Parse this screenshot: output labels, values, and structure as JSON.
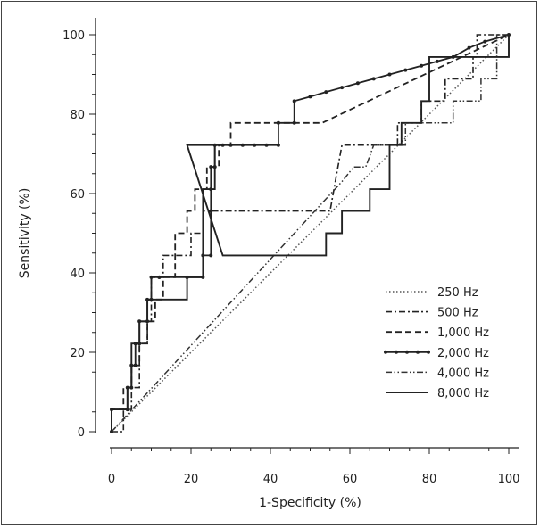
{
  "chart_data": {
    "type": "line",
    "title": "",
    "xlabel": "1-Specificity (%)",
    "ylabel": "Sensitivity (%)",
    "xlim": [
      0,
      100
    ],
    "ylim": [
      0,
      100
    ],
    "xticks": [
      0,
      20,
      40,
      60,
      80,
      100
    ],
    "yticks": [
      0,
      20,
      40,
      60,
      80,
      100
    ],
    "legend_position": "bottom-right",
    "series": [
      {
        "name": "250 Hz",
        "style": "dotted",
        "markers": false,
        "points": [
          [
            0,
            0
          ],
          [
            100,
            100
          ]
        ]
      },
      {
        "name": "500 Hz",
        "style": "dashdot",
        "markers": false,
        "points": [
          [
            0,
            0
          ],
          [
            3,
            0
          ],
          [
            3,
            5.6
          ],
          [
            5,
            5.6
          ],
          [
            5,
            11.1
          ],
          [
            7,
            11.1
          ],
          [
            7,
            22.2
          ],
          [
            9,
            22.2
          ],
          [
            9,
            27.8
          ],
          [
            10,
            27.8
          ],
          [
            10,
            38.9
          ],
          [
            12,
            38.9
          ],
          [
            13,
            38.9
          ],
          [
            13,
            44.4
          ],
          [
            20,
            44.4
          ],
          [
            20,
            50
          ],
          [
            23,
            50
          ],
          [
            23,
            55.6
          ],
          [
            35,
            55.6
          ],
          [
            35,
            55.6
          ],
          [
            53,
            55.6
          ],
          [
            55,
            55.6
          ],
          [
            57,
            66.7
          ],
          [
            58,
            72.2
          ],
          [
            60,
            72.2
          ],
          [
            61,
            72.2
          ],
          [
            63,
            72.2
          ],
          [
            68,
            72.2
          ],
          [
            72,
            72.2
          ],
          [
            72,
            77.8
          ],
          [
            78,
            77.8
          ],
          [
            78,
            83.3
          ],
          [
            84,
            83.3
          ],
          [
            84,
            88.9
          ],
          [
            91,
            88.9
          ],
          [
            91,
            94.4
          ],
          [
            92,
            94.4
          ],
          [
            92,
            100
          ],
          [
            100,
            100
          ]
        ]
      },
      {
        "name": "1,000 Hz",
        "style": "dashed",
        "markers": false,
        "points": [
          [
            0,
            0
          ],
          [
            0,
            5.6
          ],
          [
            3,
            5.6
          ],
          [
            3,
            11.1
          ],
          [
            5,
            11.1
          ],
          [
            5,
            16.7
          ],
          [
            7,
            16.7
          ],
          [
            7,
            22.2
          ],
          [
            9,
            22.2
          ],
          [
            9,
            27.8
          ],
          [
            11,
            27.8
          ],
          [
            11,
            33.3
          ],
          [
            13,
            33.3
          ],
          [
            13,
            38.9
          ],
          [
            16,
            38.9
          ],
          [
            16,
            50
          ],
          [
            19,
            50
          ],
          [
            19,
            55.6
          ],
          [
            21,
            55.6
          ],
          [
            21,
            61.1
          ],
          [
            24,
            61.1
          ],
          [
            24,
            66.7
          ],
          [
            27,
            66.7
          ],
          [
            27,
            72.2
          ],
          [
            30,
            72.2
          ],
          [
            30,
            77.8
          ],
          [
            53,
            77.8
          ],
          [
            100,
            100
          ]
        ]
      },
      {
        "name": "2,000 Hz",
        "style": "solid-markers",
        "markers": true,
        "points": [
          [
            0,
            0
          ],
          [
            0,
            5.6
          ],
          [
            4,
            5.6
          ],
          [
            4,
            11.1
          ],
          [
            5,
            11.1
          ],
          [
            5,
            16.7
          ],
          [
            6,
            16.7
          ],
          [
            6,
            22.2
          ],
          [
            7,
            22.2
          ],
          [
            7,
            27.8
          ],
          [
            9,
            27.8
          ],
          [
            9,
            33.3
          ],
          [
            10,
            33.3
          ],
          [
            10,
            38.9
          ],
          [
            12,
            38.9
          ],
          [
            12,
            38.9
          ],
          [
            19,
            38.9
          ],
          [
            19,
            38.9
          ],
          [
            23,
            38.9
          ],
          [
            23,
            44.4
          ],
          [
            25,
            44.4
          ],
          [
            25,
            55.6
          ],
          [
            25,
            61.1
          ],
          [
            25,
            66.7
          ],
          [
            26,
            66.7
          ],
          [
            26,
            72.2
          ],
          [
            28,
            72.2
          ],
          [
            30,
            72.2
          ],
          [
            33,
            72.2
          ],
          [
            36,
            72.2
          ],
          [
            39,
            72.2
          ],
          [
            42,
            72.2
          ],
          [
            42,
            77.8
          ],
          [
            46,
            77.8
          ],
          [
            46,
            83.3
          ],
          [
            50,
            84.4
          ],
          [
            54,
            85.6
          ],
          [
            58,
            86.7
          ],
          [
            62,
            87.8
          ],
          [
            66,
            88.9
          ],
          [
            70,
            90
          ],
          [
            74,
            91.1
          ],
          [
            78,
            92.2
          ],
          [
            82,
            93.3
          ],
          [
            86,
            94.4
          ],
          [
            90,
            96.7
          ],
          [
            94,
            98.3
          ],
          [
            100,
            100
          ]
        ]
      },
      {
        "name": "4,000 Hz",
        "style": "dashdotdot",
        "markers": false,
        "points": [
          [
            0,
            0
          ],
          [
            58,
            63
          ],
          [
            61,
            66.7
          ],
          [
            64,
            66.7
          ],
          [
            66,
            72.2
          ],
          [
            70,
            72.2
          ],
          [
            70,
            72.2
          ],
          [
            74,
            72.2
          ],
          [
            74,
            77.8
          ],
          [
            80,
            77.8
          ],
          [
            80,
            77.8
          ],
          [
            86,
            77.8
          ],
          [
            86,
            83.3
          ],
          [
            93,
            83.3
          ],
          [
            93,
            88.9
          ],
          [
            97,
            88.9
          ],
          [
            97,
            100
          ],
          [
            100,
            100
          ]
        ]
      },
      {
        "name": "8,000 Hz",
        "style": "solid",
        "markers": false,
        "points": [
          [
            0,
            0
          ],
          [
            0,
            5.6
          ],
          [
            4,
            5.6
          ],
          [
            4,
            11.1
          ],
          [
            5,
            11.1
          ],
          [
            5,
            22.2
          ],
          [
            7,
            22.2
          ],
          [
            7,
            27.8
          ],
          [
            9,
            27.8
          ],
          [
            9,
            33.3
          ],
          [
            19,
            33.3
          ],
          [
            19,
            38.9
          ],
          [
            23,
            38.9
          ],
          [
            23,
            61.1
          ],
          [
            26,
            61.1
          ],
          [
            26,
            72.2
          ],
          [
            28,
            72.2
          ],
          [
            28,
            72.2
          ],
          [
            19,
            72.2
          ],
          [
            28,
            44.4
          ],
          [
            54,
            44.4
          ],
          [
            54,
            50
          ],
          [
            58,
            50
          ],
          [
            58,
            55.6
          ],
          [
            65,
            55.6
          ],
          [
            65,
            61.1
          ],
          [
            70,
            61.1
          ],
          [
            70,
            72.2
          ],
          [
            73,
            72.2
          ],
          [
            73,
            77.8
          ],
          [
            78,
            77.8
          ],
          [
            78,
            83.3
          ],
          [
            80,
            83.3
          ],
          [
            80,
            94.4
          ],
          [
            100,
            94.4
          ],
          [
            100,
            100
          ]
        ]
      }
    ]
  }
}
